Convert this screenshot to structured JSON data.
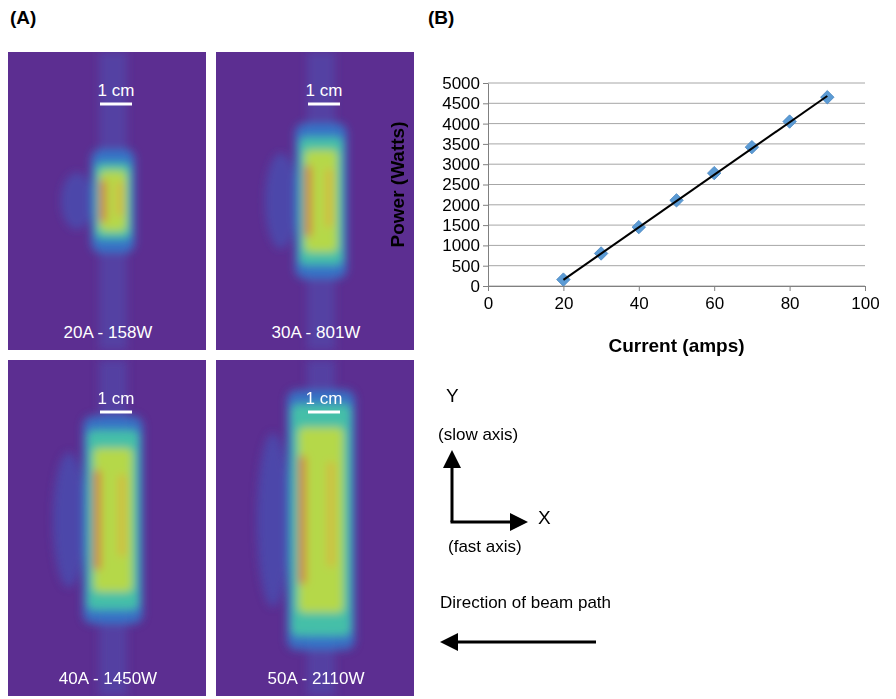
{
  "panel_labels": [
    "(A)",
    "(B)"
  ],
  "beam_profiles": [
    {
      "label": "20A - 158W",
      "scale_bar": "1 cm"
    },
    {
      "label": "30A - 801W",
      "scale_bar": "1 cm"
    },
    {
      "label": "40A - 1450W",
      "scale_bar": "1 cm"
    },
    {
      "label": "50A - 2110W",
      "scale_bar": "1 cm"
    }
  ],
  "chart_data": {
    "type": "scatter",
    "x_label": "Current (amps)",
    "y_label": "Power (Watts)",
    "xlim": [
      0,
      100
    ],
    "xticks": [
      0,
      20,
      40,
      60,
      80,
      100
    ],
    "ylim": [
      0,
      5000
    ],
    "yticks": [
      0,
      500,
      1000,
      1500,
      2000,
      2500,
      3000,
      3500,
      4000,
      4500,
      5000
    ],
    "grid": "y",
    "series": [
      {
        "type": "scatter",
        "marker": "diamond",
        "color": "#5b9bd5",
        "x": [
          20,
          30,
          40,
          50,
          60,
          70,
          80,
          90
        ],
        "values": [
          158,
          801,
          1450,
          2110,
          2780,
          3420,
          4050,
          4650
        ]
      },
      {
        "type": "line",
        "line_style": "solid",
        "color": "#000000",
        "x": [
          20,
          90
        ],
        "values": [
          150,
          4680
        ]
      }
    ]
  },
  "axes_diagram": {
    "y": "Y",
    "y_note": "(slow axis)",
    "x": "X",
    "x_note": "(fast axis)",
    "beam_path": "Direction of beam path"
  }
}
